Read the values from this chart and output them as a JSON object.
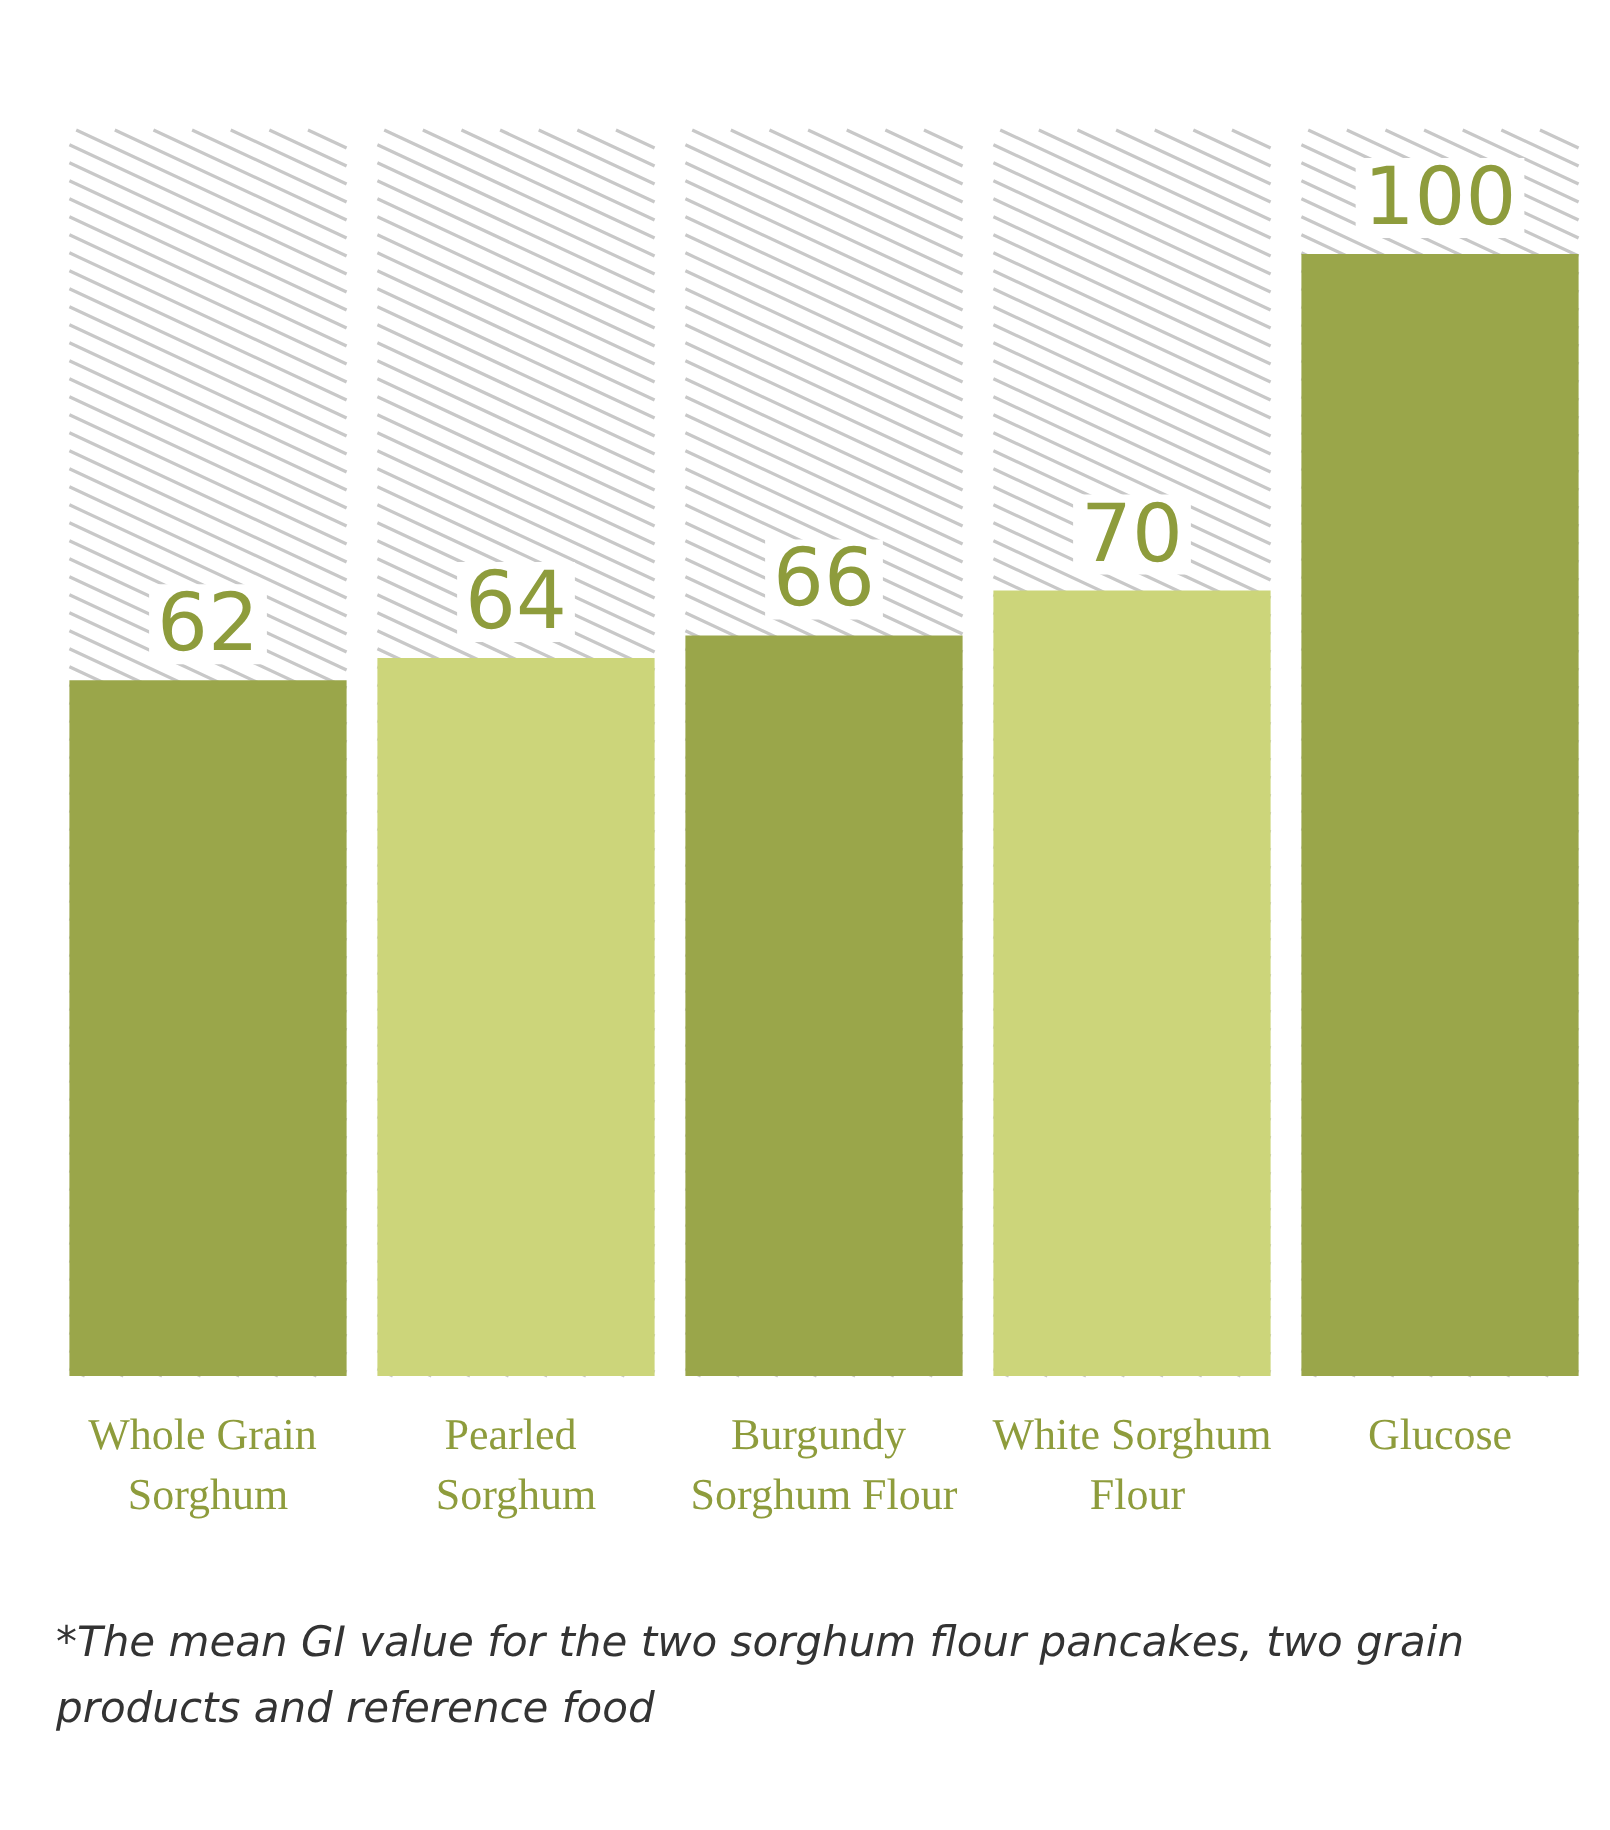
{
  "chart_data": {
    "type": "bar",
    "categories": [
      "Whole Grain Sorghum",
      "Pearled Sorghum",
      "Burgundy Sorghum Flour",
      "White Sorghum Flour",
      "Glucose"
    ],
    "values": [
      62,
      64,
      66,
      70,
      100
    ],
    "colors": [
      "#9aa64a",
      "#ccd57a",
      "#9aa64a",
      "#ccd57a",
      "#9aa64a"
    ],
    "data_labels": true,
    "annotations": [
      "*The mean GI value for the two sorghum flour pancakes, two grain products and reference food"
    ]
  }
}
